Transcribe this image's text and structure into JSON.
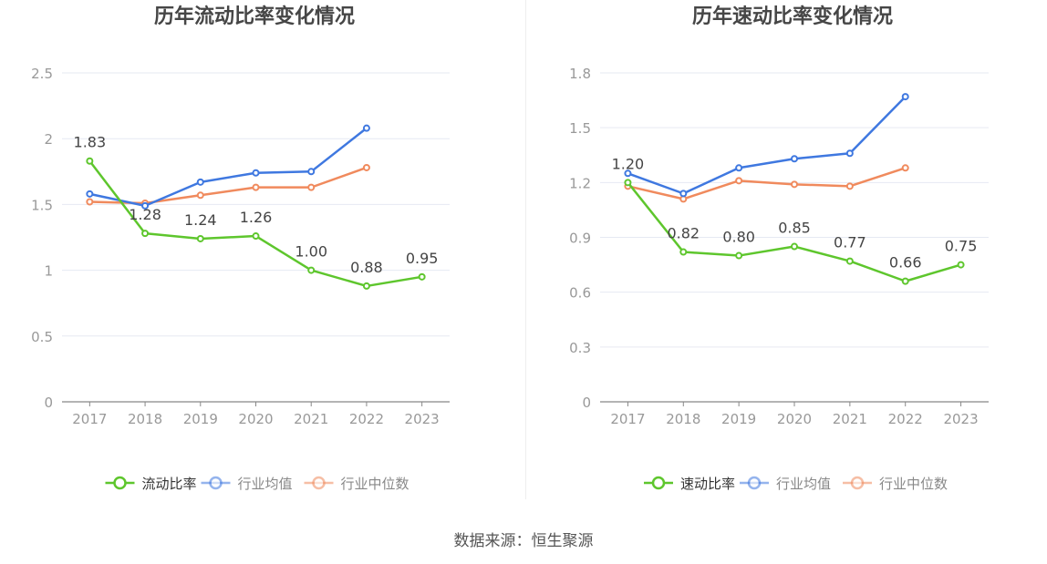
{
  "source_text": "数据来源：恒生聚源",
  "colors": {
    "series1": "#5ec62d",
    "avg": "#3f78e0",
    "median": "#f08a5d",
    "grid": "#e6e9f2",
    "axis": "#888888",
    "tick_text": "#999999",
    "label_text": "#444444"
  },
  "chart_data": [
    {
      "type": "line",
      "title": "历年流动比率变化情况",
      "categories": [
        "2017",
        "2018",
        "2019",
        "2020",
        "2021",
        "2022",
        "2023"
      ],
      "ylim": [
        0,
        2.5
      ],
      "yticks": [
        "0",
        "0.5",
        "1",
        "1.5",
        "2",
        "2.5"
      ],
      "grid": true,
      "legend": "bottom-center",
      "series": [
        {
          "name": "流动比率",
          "values": [
            1.83,
            1.28,
            1.24,
            1.26,
            1.0,
            0.88,
            0.95
          ],
          "labels": [
            "1.83",
            "1.28",
            "1.24",
            "1.26",
            "1.00",
            "0.88",
            "0.95"
          ],
          "color": "#5ec62d"
        },
        {
          "name": "行业均值",
          "values": [
            1.58,
            1.49,
            1.67,
            1.74,
            1.75,
            2.08,
            null
          ],
          "color": "#3f78e0"
        },
        {
          "name": "行业中位数",
          "values": [
            1.52,
            1.51,
            1.57,
            1.63,
            1.63,
            1.78,
            null
          ],
          "color": "#f08a5d"
        }
      ]
    },
    {
      "type": "line",
      "title": "历年速动比率变化情况",
      "categories": [
        "2017",
        "2018",
        "2019",
        "2020",
        "2021",
        "2022",
        "2023"
      ],
      "ylim": [
        0,
        1.8
      ],
      "yticks": [
        "0",
        "0.3",
        "0.6",
        "0.9",
        "1.2",
        "1.5",
        "1.8"
      ],
      "grid": true,
      "legend": "bottom-center",
      "series": [
        {
          "name": "速动比率",
          "values": [
            1.2,
            0.82,
            0.8,
            0.85,
            0.77,
            0.66,
            0.75
          ],
          "labels": [
            "1.20",
            "0.82",
            "0.80",
            "0.85",
            "0.77",
            "0.66",
            "0.75"
          ],
          "color": "#5ec62d"
        },
        {
          "name": "行业均值",
          "values": [
            1.25,
            1.14,
            1.28,
            1.33,
            1.36,
            1.67,
            null
          ],
          "color": "#3f78e0"
        },
        {
          "name": "行业中位数",
          "values": [
            1.18,
            1.11,
            1.21,
            1.19,
            1.18,
            1.28,
            null
          ],
          "color": "#f08a5d"
        }
      ]
    }
  ]
}
